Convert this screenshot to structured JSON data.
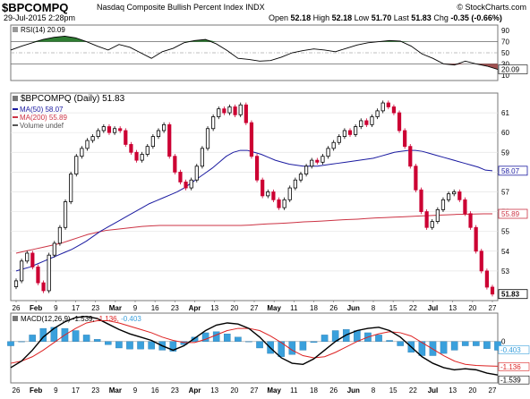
{
  "header": {
    "symbol": "$BPCOMPQ",
    "title": "Nasdaq Composite Bullish Percent Index  INDX",
    "date": "29-Jul-2015 2:28pm",
    "copyright": "© StockCharts.com",
    "open_label": "Open",
    "open": "52.18",
    "high_label": "High",
    "high": "52.18",
    "low_label": "Low",
    "low": "51.70",
    "last_label": "Last",
    "last": "51.83",
    "chg_label": "Chg",
    "chg": "-0.35 (-0.66%)"
  },
  "colors": {
    "up": "#000000",
    "down": "#cc0033",
    "ma50": "#1a1aa0",
    "ma200": "#cc3344",
    "rsi_fill_hi": "#2e7d32",
    "rsi_fill_lo": "#a05050",
    "macd_hist": "#3aa0dc",
    "signal": "#dd2222",
    "macd": "#000000"
  },
  "chart_data": [
    {
      "type": "line",
      "panel": "rsi",
      "legend": "RSI(14) 20.09",
      "ylim": [
        0,
        100
      ],
      "ticks": [
        10,
        30,
        50,
        70,
        90
      ],
      "value_label": "20.09",
      "x": [
        0,
        3,
        6,
        9,
        12,
        15,
        18,
        21,
        24,
        27,
        30,
        33,
        36,
        39,
        42,
        45,
        48,
        51,
        54,
        57,
        60,
        63,
        66,
        69,
        72,
        75,
        78,
        81,
        84,
        87,
        90,
        93,
        96,
        99,
        102,
        105,
        108,
        111,
        114,
        117,
        120,
        123,
        126,
        129,
        132,
        135
      ],
      "values": [
        55,
        62,
        68,
        74,
        78,
        80,
        77,
        70,
        62,
        55,
        65,
        60,
        50,
        40,
        52,
        58,
        68,
        72,
        74,
        66,
        54,
        40,
        38,
        35,
        36,
        42,
        50,
        54,
        57,
        55,
        52,
        58,
        64,
        68,
        70,
        72,
        71,
        62,
        48,
        40,
        30,
        28,
        35,
        30,
        26,
        20.09
      ]
    },
    {
      "type": "candlestick",
      "panel": "price",
      "legend": "$BPCOMPQ (Daily) 51.83",
      "ylim": [
        51.5,
        62
      ],
      "ticks": [
        53,
        54,
        55,
        56,
        57,
        58,
        59,
        60,
        61
      ],
      "last_label": "51.83",
      "ma50_label": "58.07",
      "ma200_label": "55.89",
      "legend_items": [
        "MA(50) 58.07",
        "MA(200) 55.89",
        "Volume undef"
      ],
      "close": [
        52.5,
        53.5,
        53.9,
        53.2,
        52.4,
        52.0,
        53.8,
        54.4,
        55.2,
        56.5,
        57.9,
        58.8,
        59.2,
        59.6,
        59.8,
        60.1,
        60.3,
        60.0,
        60.2,
        60.1,
        59.4,
        59.0,
        58.6,
        58.9,
        59.3,
        59.8,
        60.1,
        60.4,
        58.8,
        58.0,
        57.5,
        57.2,
        57.6,
        58.3,
        59.2,
        60.2,
        60.8,
        61.2,
        61.0,
        61.3,
        60.9,
        61.4,
        60.5,
        58.8,
        57.6,
        56.8,
        57.0,
        56.6,
        56.2,
        56.6,
        57.2,
        57.6,
        57.9,
        58.3,
        58.6,
        58.5,
        58.8,
        59.2,
        59.5,
        59.8,
        60.1,
        59.9,
        60.3,
        60.6,
        60.4,
        60.8,
        61.1,
        61.5,
        61.3,
        61.0,
        60.1,
        59.3,
        58.3,
        57.1,
        56.0,
        55.2,
        55.5,
        56.1,
        56.6,
        56.9,
        57.0,
        56.6,
        55.9,
        55.2,
        54.0,
        53.0,
        52.18,
        51.83
      ],
      "ma50": [
        53.0,
        53.1,
        53.2,
        53.35,
        53.5,
        53.65,
        53.8,
        53.95,
        54.1,
        54.3,
        54.5,
        54.75,
        55.0,
        55.2,
        55.4,
        55.6,
        55.8,
        56.0,
        56.2,
        56.4,
        56.55,
        56.7,
        56.85,
        57.0,
        57.2,
        57.45,
        57.7,
        57.95,
        58.2,
        58.5,
        58.8,
        59.0,
        59.1,
        59.1,
        59.0,
        58.9,
        58.75,
        58.6,
        58.5,
        58.4,
        58.35,
        58.3,
        58.3,
        58.3,
        58.35,
        58.4,
        58.45,
        58.5,
        58.55,
        58.6,
        58.65,
        58.7,
        58.8,
        58.9,
        59.0,
        59.05,
        59.1,
        59.1,
        59.05,
        58.95,
        58.85,
        58.75,
        58.65,
        58.55,
        58.45,
        58.35,
        58.25,
        58.1,
        58.07
      ],
      "ma200": [
        53.9,
        54.0,
        54.1,
        54.2,
        54.3,
        54.4,
        54.55,
        54.7,
        54.85,
        54.95,
        55.05,
        55.1,
        55.15,
        55.2,
        55.25,
        55.28,
        55.3,
        55.3,
        55.3,
        55.3,
        55.3,
        55.3,
        55.3,
        55.3,
        55.3,
        55.3,
        55.32,
        55.35,
        55.38,
        55.4,
        55.42,
        55.45,
        55.48,
        55.5,
        55.52,
        55.55,
        55.58,
        55.6,
        55.62,
        55.65,
        55.68,
        55.7,
        55.72,
        55.74,
        55.76,
        55.78,
        55.8,
        55.82,
        55.84,
        55.86,
        55.87,
        55.88,
        55.89,
        55.89
      ]
    },
    {
      "type": "line",
      "panel": "macd",
      "legend": "MACD(12,26,9) -1.539, -1.136, -0.403",
      "ylim": [
        -1.9,
        1.3
      ],
      "ticks": [
        0
      ],
      "tick_labels": [
        "0"
      ],
      "value_labels": [
        "-0.403",
        "-1.136",
        "-1.539"
      ],
      "macd": [
        -1.2,
        -0.9,
        -0.4,
        0.2,
        0.6,
        0.9,
        1.1,
        1.15,
        1.05,
        0.8,
        0.55,
        0.35,
        0.2,
        0.05,
        -0.2,
        -0.4,
        -0.2,
        0.15,
        0.5,
        0.75,
        0.85,
        0.8,
        0.6,
        0.2,
        -0.3,
        -0.75,
        -1.0,
        -1.05,
        -0.8,
        -0.4,
        0.0,
        0.3,
        0.5,
        0.6,
        0.65,
        0.5,
        0.2,
        -0.25,
        -0.7,
        -1.0,
        -1.2,
        -1.3,
        -1.25,
        -1.3,
        -1.45,
        -1.539
      ],
      "signal": [
        -1.0,
        -0.9,
        -0.7,
        -0.4,
        -0.05,
        0.3,
        0.6,
        0.85,
        0.95,
        0.95,
        0.85,
        0.7,
        0.55,
        0.4,
        0.2,
        0.05,
        -0.05,
        -0.05,
        0.1,
        0.3,
        0.5,
        0.6,
        0.6,
        0.5,
        0.25,
        -0.05,
        -0.4,
        -0.65,
        -0.75,
        -0.7,
        -0.5,
        -0.25,
        0.0,
        0.2,
        0.35,
        0.45,
        0.4,
        0.25,
        -0.05,
        -0.35,
        -0.65,
        -0.9,
        -1.05,
        -1.1,
        -1.12,
        -1.136
      ]
    }
  ],
  "x_axis": {
    "labels": [
      "26",
      "Feb",
      "9",
      "17",
      "23",
      "Mar",
      "9",
      "16",
      "23",
      "Apr",
      "13",
      "20",
      "27",
      "May",
      "11",
      "18",
      "26",
      "Jun",
      "8",
      "15",
      "22",
      "Jul",
      "13",
      "20",
      "27"
    ],
    "bold": [
      "Feb",
      "Mar",
      "Apr",
      "May",
      "Jun",
      "Jul"
    ]
  }
}
